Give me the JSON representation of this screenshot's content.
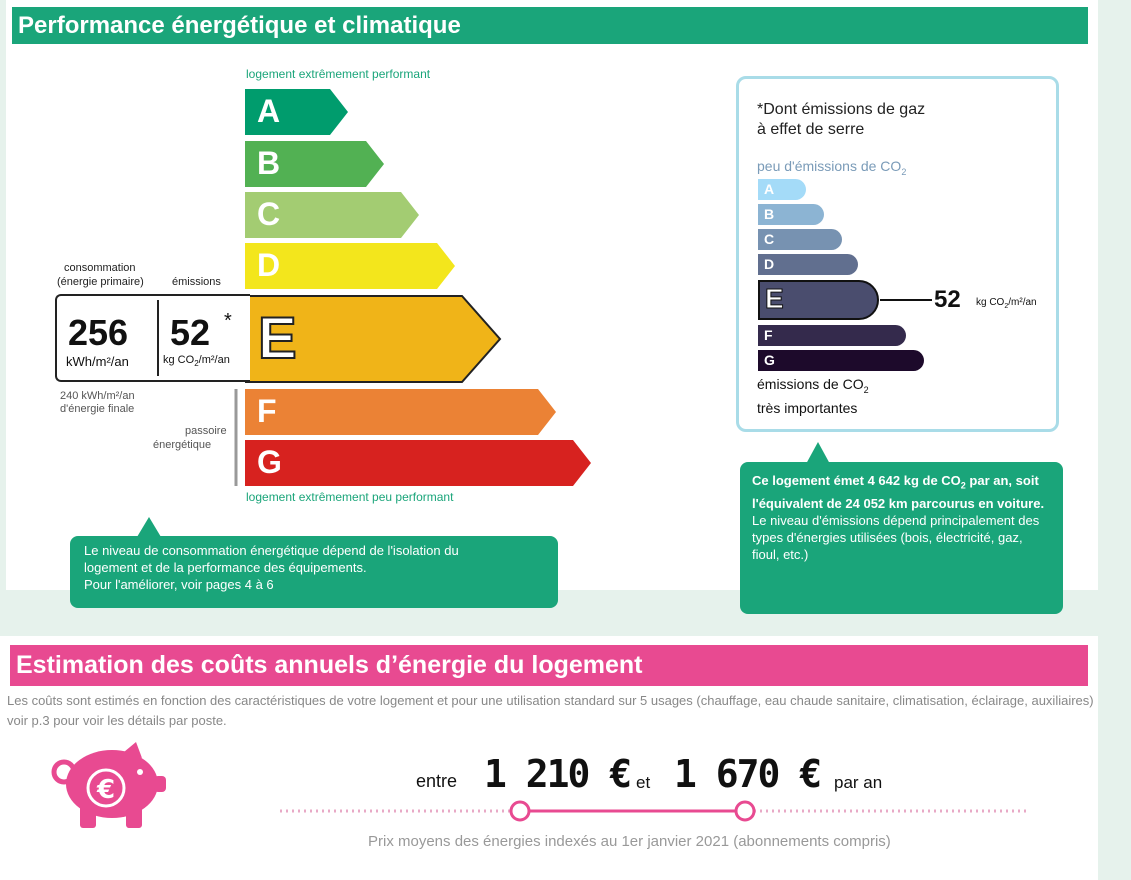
{
  "dpe": {
    "title": "Performance énergétique et climatique",
    "top_caption": "logement extrêmement performant",
    "bottom_caption": "logement extrêmement peu performant",
    "classes": [
      "A",
      "B",
      "C",
      "D",
      "E",
      "F",
      "G"
    ],
    "current_class": "E",
    "consumption_label_1": "consommation",
    "consumption_label_2": "(énergie primaire)",
    "emissions_label": "émissions",
    "consumption_value": "256",
    "consumption_unit": "kWh/m²/an",
    "emissions_value": "52",
    "emissions_star": "*",
    "emissions_unit_prefix": "kg CO",
    "emissions_unit_sub": "2",
    "emissions_unit_suffix": "/m²/an",
    "final_energy_1": "240 kWh/m²/an",
    "final_energy_2": "d'énergie finale",
    "passoire_1": "passoire",
    "passoire_2": "énergétique",
    "bubble_line1": "Le niveau de consommation énergétique dépend de l'isolation du",
    "bubble_line2": "logement et de la performance des équipements.",
    "bubble_line3": "Pour l'améliorer, voir pages 4 à 6",
    "colors": {
      "A": "#009c6d",
      "B": "#52b153",
      "C": "#a3cc72",
      "D": "#f3e61c",
      "E": "#f0b418",
      "F": "#eb8235",
      "G": "#d7221f"
    }
  },
  "ges": {
    "title_star": "*",
    "title_1": "Dont émissions de gaz",
    "title_2": "à effet de serre",
    "low_label": "peu d'émissions de CO",
    "low_label_sub": "2",
    "classes": [
      "A",
      "B",
      "C",
      "D",
      "E",
      "F",
      "G"
    ],
    "current_class": "E",
    "value": "52",
    "unit_prefix": "kg CO",
    "unit_sub": "2",
    "unit_suffix": "/m²/an",
    "high_label_1": "émissions de CO",
    "high_label_1_sub": "2",
    "high_label_2": "très importantes",
    "colors": {
      "A": "#a4dbf8",
      "B": "#8cb4d3",
      "C": "#7792b1",
      "D": "#616f8f",
      "E": "#4a4d6e",
      "F": "#342a4c",
      "G": "#1d0a2b"
    },
    "bubble_bold_1": "Ce logement émet 4 642 kg de CO",
    "bubble_bold_sub": "2",
    "bubble_bold_2": " par an, soit l'équivalent de 24 052 km parcourus en voiture.",
    "bubble_text": "Le niveau d'émissions dépend principalement des types d'énergies utilisées (bois, électricité, gaz, fioul, etc.)"
  },
  "cost": {
    "title": "Estimation des coûts annuels d’énergie du logement",
    "description": "Les coûts sont estimés en fonction des caractéristiques de votre logement et pour une utilisation standard sur 5 usages (chauffage, eau chaude sanitaire, climatisation, éclairage, auxiliaires) voir p.3 pour voir les détails par poste.",
    "word_between": "entre",
    "low_value": "1 210 €",
    "word_and": "et",
    "high_value": "1 670 €",
    "per_year": "par an",
    "footnote": "Prix moyens des énergies indexés au  1er janvier 2021 (abonnements compris)",
    "accent": "#e84a91"
  }
}
